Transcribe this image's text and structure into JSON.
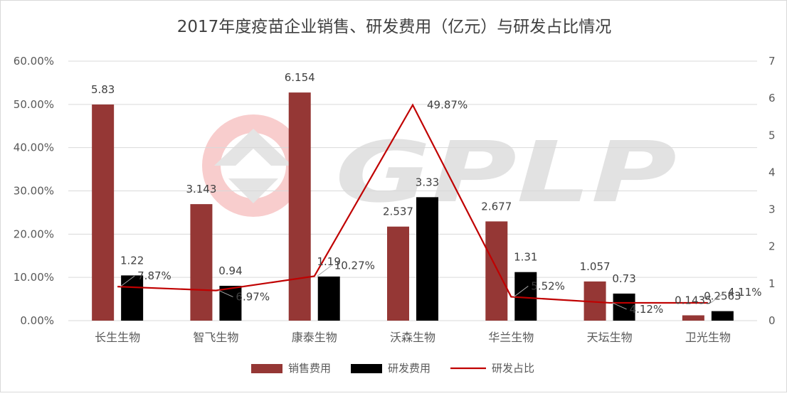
{
  "chart_data": {
    "type": "bar",
    "title": "2017年度疫苗企业销售、研发费用（亿元）与研发占比情况",
    "categories": [
      "长生生物",
      "智飞生物",
      "康泰生物",
      "沃森生物",
      "华兰生物",
      "天坛生物",
      "卫光生物"
    ],
    "series": [
      {
        "name": "销售费用",
        "type": "bar",
        "axis": "right",
        "color": "#953735",
        "values": [
          5.83,
          3.143,
          6.154,
          2.537,
          2.677,
          1.057,
          0.1435
        ],
        "labels": [
          "5.83",
          "3.143",
          "6.154",
          "2.537",
          "2.677",
          "1.057",
          "0.1435"
        ]
      },
      {
        "name": "研发费用",
        "type": "bar",
        "axis": "right",
        "color": "#000000",
        "values": [
          1.22,
          0.94,
          1.19,
          3.33,
          1.31,
          0.73,
          0.2563
        ],
        "labels": [
          "1.22",
          "0.94",
          "1.19",
          "3.33",
          "1.31",
          "0.73",
          "0.2563"
        ]
      },
      {
        "name": "研发占比",
        "type": "line",
        "axis": "left",
        "color": "#c00000",
        "values": [
          7.87,
          6.97,
          10.27,
          49.87,
          5.52,
          4.12,
          4.11
        ],
        "labels": [
          "7.87%",
          "6.97%",
          "10.27%",
          "49.87%",
          "5.52%",
          "4.12%",
          "4.11%"
        ]
      }
    ],
    "left_axis": {
      "ylim": [
        0,
        60
      ],
      "ticks": [
        "0.00%",
        "10.00%",
        "20.00%",
        "30.00%",
        "40.00%",
        "50.00%",
        "60.00%"
      ]
    },
    "right_axis": {
      "ylim": [
        0,
        7
      ],
      "ticks": [
        "0",
        "1",
        "2",
        "3",
        "4",
        "5",
        "6",
        "7"
      ]
    },
    "grid": true,
    "legend_position": "bottom",
    "watermark": "GPLP"
  }
}
